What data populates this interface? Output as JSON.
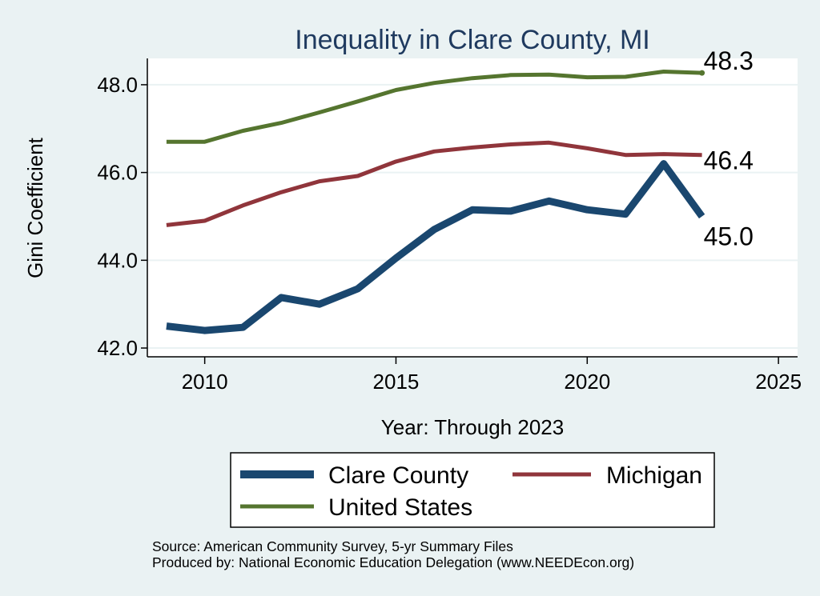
{
  "chart_data": {
    "type": "line",
    "title": "Inequality in Clare County, MI",
    "xlabel": "Year: Through 2023",
    "ylabel": "Gini Coefficient",
    "xlim": [
      2008.5,
      2025.5
    ],
    "ylim": [
      41.8,
      48.6
    ],
    "xticks": [
      2010,
      2015,
      2020,
      2025
    ],
    "yticks": [
      42.0,
      44.0,
      46.0,
      48.0
    ],
    "ytick_labels": [
      "42.0",
      "44.0",
      "46.0",
      "48.0"
    ],
    "x": [
      2009,
      2010,
      2011,
      2012,
      2013,
      2014,
      2015,
      2016,
      2017,
      2018,
      2019,
      2020,
      2021,
      2022,
      2023
    ],
    "series": [
      {
        "name": "Clare County",
        "color": "#1A476F",
        "values": [
          42.5,
          42.4,
          42.47,
          43.15,
          43.0,
          43.35,
          44.05,
          44.7,
          45.15,
          45.12,
          45.35,
          45.15,
          45.05,
          46.2,
          45.0
        ],
        "end_label": "45.0"
      },
      {
        "name": "Michigan",
        "color": "#90353B",
        "values": [
          44.8,
          44.9,
          45.25,
          45.55,
          45.8,
          45.92,
          46.25,
          46.48,
          46.57,
          46.64,
          46.68,
          46.55,
          46.4,
          46.42,
          46.4
        ],
        "end_label": "46.4"
      },
      {
        "name": "United States",
        "color": "#55752F",
        "values": [
          46.7,
          46.7,
          46.95,
          47.13,
          47.37,
          47.62,
          47.88,
          48.04,
          48.15,
          48.22,
          48.23,
          48.17,
          48.18,
          48.3,
          48.27
        ],
        "end_label": "48.3"
      }
    ],
    "legend": {
      "placement": "bottom",
      "entries": [
        "Clare County",
        "Michigan",
        "United States"
      ]
    },
    "source": "Source: American Community Survey, 5-yr Summary Files",
    "producer": "Produced by: National Economic Education Delegation (www.NEEDEcon.org)"
  }
}
